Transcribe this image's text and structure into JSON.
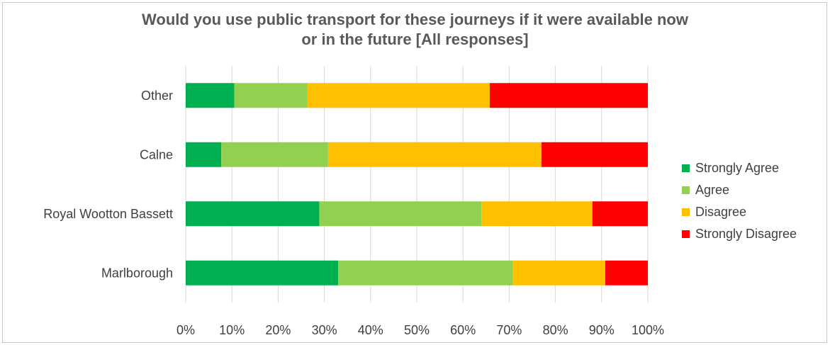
{
  "chart_data": {
    "type": "bar",
    "orientation": "horizontal",
    "stacked": "percent",
    "title_lines": [
      "Would you use public transport for these journeys if it were available now",
      "or in the future [All responses]"
    ],
    "categories": [
      "Other",
      "Calne",
      "Royal Wootton Bassett",
      "Marlborough"
    ],
    "series": [
      {
        "name": "Strongly Agree",
        "color": "#00b050",
        "values": [
          10.5,
          7.7,
          28.9,
          33.0
        ]
      },
      {
        "name": "Agree",
        "color": "#92d050",
        "values": [
          15.8,
          23.1,
          35.1,
          37.8
        ]
      },
      {
        "name": "Disagree",
        "color": "#ffc000",
        "values": [
          39.5,
          46.2,
          24.0,
          20.0
        ]
      },
      {
        "name": "Strongly Disagree",
        "color": "#ff0000",
        "values": [
          34.2,
          23.0,
          12.0,
          9.2
        ]
      }
    ],
    "x_ticks": [
      "0%",
      "10%",
      "20%",
      "30%",
      "40%",
      "50%",
      "60%",
      "70%",
      "80%",
      "90%",
      "100%"
    ],
    "xlim": [
      0,
      100
    ],
    "grid": true,
    "gridline_color": "#d9d9d9",
    "legend_position": "right"
  }
}
